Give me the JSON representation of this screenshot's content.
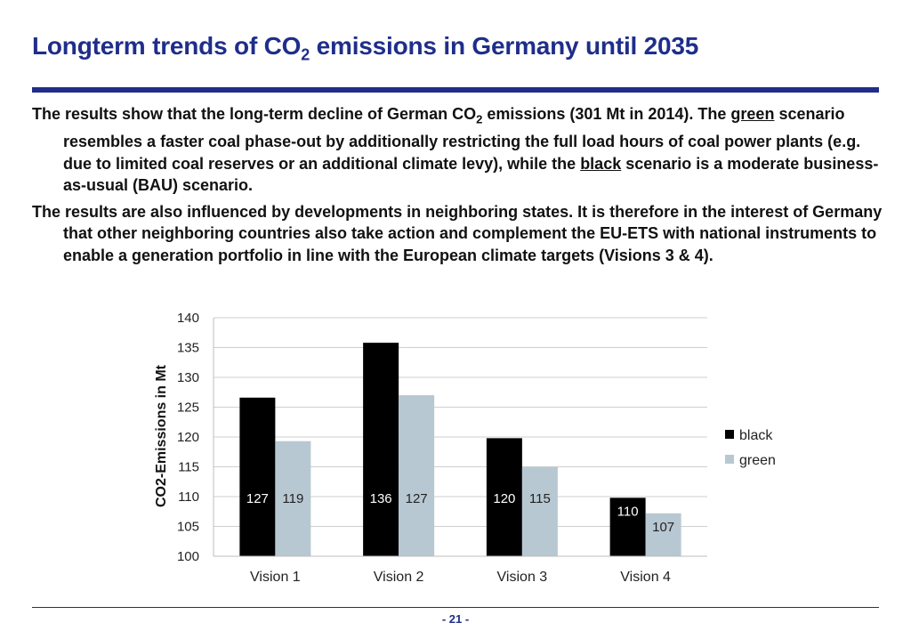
{
  "header": {
    "title_pre": "Longterm trends of CO",
    "title_sub": "2",
    "title_post": " emissions in Germany until 2035"
  },
  "body": {
    "p1_a": "The results show that the long-term decline of German CO",
    "p1_sub": "2",
    "p1_b": " emissions (301 Mt in 2014). The ",
    "p1_green": "green",
    "p1_c": " scenario resembles a faster coal phase-out by additionally restricting the full load hours of coal power plants (e.g. due to limited coal reserves or an additional climate levy), while the ",
    "p1_black": "black",
    "p1_d": " scenario is a moderate business-as-usual (BAU) scenario.",
    "p2": "The results are also influenced by developments in neighboring states. It is therefore in the interest of Germany that other neighboring countries also take action and complement the EU-ETS with national instruments to enable a generation portfolio in line with the European climate targets (Visions 3 & 4)."
  },
  "chart_data": {
    "type": "bar",
    "title": "",
    "xlabel": "",
    "ylabel": "CO2-Emissions in Mt",
    "ylim": [
      100,
      140
    ],
    "yticks": [
      100,
      105,
      110,
      115,
      120,
      125,
      130,
      135,
      140
    ],
    "grid": true,
    "legend_position": "right",
    "categories": [
      "Vision 1",
      "Vision 2",
      "Vision 3",
      "Vision 4"
    ],
    "series": [
      {
        "name": "black",
        "color": "#000000",
        "label_color": "#ffffff",
        "values": [
          126.6,
          135.8,
          119.8,
          109.8
        ],
        "labels": [
          "127",
          "136",
          "120",
          "110"
        ]
      },
      {
        "name": "green",
        "color": "#b8c8d2",
        "label_color": "#222222",
        "values": [
          119.3,
          127.0,
          115.0,
          107.2
        ],
        "labels": [
          "119",
          "127",
          "115",
          "107"
        ]
      }
    ]
  },
  "footer": {
    "page": "- 21 -"
  }
}
